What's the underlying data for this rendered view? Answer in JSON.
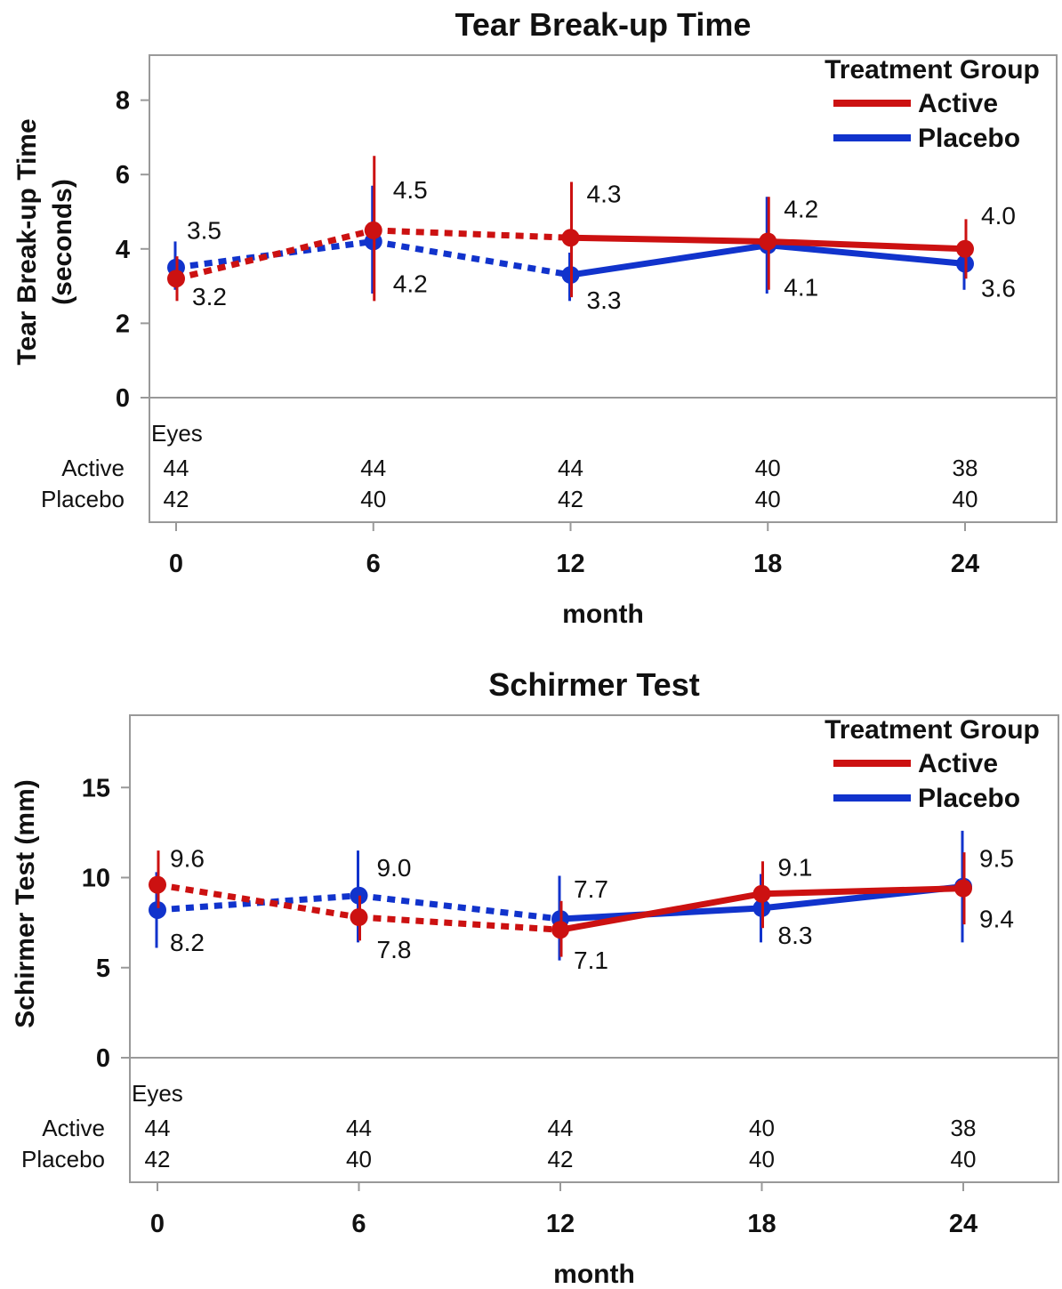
{
  "colors": {
    "active": "#cc1111",
    "placebo": "#1133cc",
    "frame": "#999999"
  },
  "chart_data": [
    {
      "type": "line",
      "title": "Tear Break-up Time",
      "ylabel_line1": "Tear Break-up Time",
      "ylabel_line2": "(seconds)",
      "xlabel": "month",
      "x": [
        0,
        6,
        12,
        18,
        24
      ],
      "xticks": [
        "0",
        "6",
        "12",
        "18",
        "24"
      ],
      "yticks": [
        0,
        2,
        4,
        6,
        8
      ],
      "ylim": [
        0,
        9.2
      ],
      "legend": {
        "title": "Treatment Group",
        "position": "top-right"
      },
      "series": [
        {
          "name": "Active",
          "values": [
            3.2,
            4.5,
            4.3,
            4.2,
            4.0
          ],
          "err_low": [
            2.6,
            2.6,
            2.7,
            2.9,
            3.2
          ],
          "err_high": [
            3.8,
            6.5,
            5.8,
            5.4,
            4.8
          ],
          "labels": [
            "3.2",
            "4.5",
            "4.3",
            "4.2",
            "4.0"
          ]
        },
        {
          "name": "Placebo",
          "values": [
            3.5,
            4.2,
            3.3,
            4.1,
            3.6
          ],
          "err_low": [
            2.9,
            2.8,
            2.6,
            2.8,
            2.9
          ],
          "err_high": [
            4.2,
            5.7,
            3.9,
            5.4,
            4.2
          ],
          "labels": [
            "3.5",
            "4.2",
            "3.3",
            "4.1",
            "3.6"
          ]
        }
      ],
      "eyes": {
        "header": "Eyes",
        "rows": [
          {
            "label": "Active",
            "counts": [
              "44",
              "44",
              "44",
              "40",
              "38"
            ]
          },
          {
            "label": "Placebo",
            "counts": [
              "42",
              "40",
              "42",
              "40",
              "40"
            ]
          }
        ]
      }
    },
    {
      "type": "line",
      "title": "Schirmer Test",
      "ylabel_line1": "Schirmer Test (mm)",
      "ylabel_line2": "",
      "xlabel": "month",
      "x": [
        0,
        6,
        12,
        18,
        24
      ],
      "xticks": [
        "0",
        "6",
        "12",
        "18",
        "24"
      ],
      "yticks": [
        0,
        5,
        10,
        15
      ],
      "ylim": [
        0,
        19.2
      ],
      "legend": {
        "title": "Treatment Group",
        "position": "top-right"
      },
      "series": [
        {
          "name": "Active",
          "values": [
            9.6,
            7.8,
            7.1,
            9.1,
            9.4
          ],
          "err_low": [
            8.3,
            6.5,
            5.6,
            7.2,
            7.4
          ],
          "err_high": [
            11.5,
            9.0,
            8.7,
            10.9,
            11.4
          ],
          "labels": [
            "9.6",
            "7.8",
            "7.1",
            "9.1",
            "9.4"
          ]
        },
        {
          "name": "Placebo",
          "values": [
            8.2,
            9.0,
            7.7,
            8.3,
            9.5
          ],
          "err_low": [
            6.1,
            6.4,
            5.4,
            6.4,
            6.4
          ],
          "err_high": [
            10.3,
            11.5,
            10.1,
            10.2,
            12.6
          ],
          "labels": [
            "8.2",
            "9.0",
            "7.7",
            "8.3",
            "9.5"
          ]
        }
      ],
      "eyes": {
        "header": "Eyes",
        "rows": [
          {
            "label": "Active",
            "counts": [
              "44",
              "44",
              "44",
              "40",
              "38"
            ]
          },
          {
            "label": "Placebo",
            "counts": [
              "42",
              "40",
              "42",
              "40",
              "40"
            ]
          }
        ]
      }
    }
  ]
}
